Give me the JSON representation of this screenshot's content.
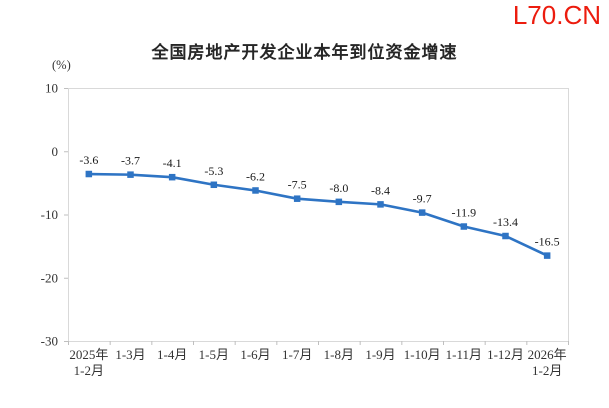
{
  "watermark": {
    "text": "L70.CN",
    "color": "#EC1C0E"
  },
  "chart_data": {
    "type": "line",
    "title": "全国房地产开发企业本年到位资金增速",
    "unit_label": "(%)",
    "categories": [
      "2025年\n1-2月",
      "1-3月",
      "1-4月",
      "1-5月",
      "1-6月",
      "1-7月",
      "1-8月",
      "1-9月",
      "1-10月",
      "1-11月",
      "1-12月",
      "2026年\n1-2月"
    ],
    "values": [
      -3.6,
      -3.7,
      -4.1,
      -5.3,
      -6.2,
      -7.5,
      -8.0,
      -8.4,
      -9.7,
      -11.9,
      -13.4,
      -16.5
    ],
    "data_labels": [
      "-3.6",
      "-3.7",
      "-4.1",
      "-5.3",
      "-6.2",
      "-7.5",
      "-8.0",
      "-8.4",
      "-9.7",
      "-11.9",
      "-13.4",
      "-16.5"
    ],
    "ylim": [
      -30,
      10
    ],
    "ytick_step": 10,
    "ytick_labels": [
      "10",
      "0",
      "-10",
      "-20",
      "-30"
    ],
    "xlabel": "",
    "ylabel": "(%)",
    "line_color": "#2E74C4",
    "marker": "square",
    "axis_color": "#D9D9D9",
    "tick_color": "#BFBFBF",
    "grid": false,
    "legend": "none"
  }
}
